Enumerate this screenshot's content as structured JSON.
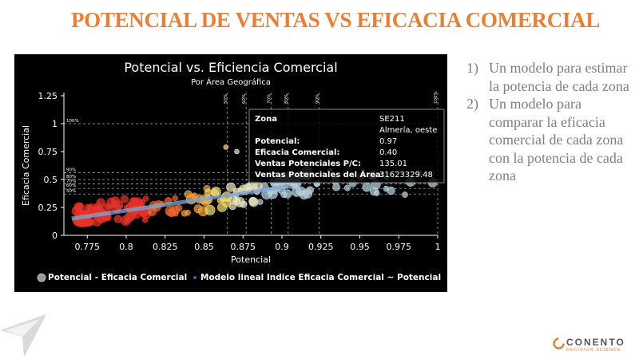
{
  "slide": {
    "title": "POTENCIAL DE VENTAS VS EFICACIA COMERCIAL",
    "bullets": [
      {
        "num": "1)",
        "text": "Un modelo para estimar la potencia de cada zona"
      },
      {
        "num": "2)",
        "text": "Un modelo para comparar la eficacia comercial de cada zona con la potencia de cada zona"
      }
    ],
    "logo_text": "CONENTO",
    "logo_subtext": "DECISION SCIENCE"
  },
  "colors": {
    "accent": "#ed7d31",
    "chart_bg": "#000000",
    "bullet_text": "#7f7f7f"
  },
  "chart_data": {
    "type": "scatter",
    "title": "Potencial vs. Eficiencia Comercial",
    "subtitle": "Por Área Geográfica",
    "xlabel": "Potencial",
    "ylabel": "Eficacia Comercial",
    "xlim": [
      0.76,
      1.0
    ],
    "ylim": [
      0,
      1.25
    ],
    "x_ticks": [
      "0.775",
      "0.8",
      "0.825",
      "0.85",
      "0.875",
      "0.9",
      "0.925",
      "0.95",
      "0.975",
      "1"
    ],
    "y_ticks": [
      "0",
      "0.25",
      "0.5",
      "0.75",
      "1",
      "1.25"
    ],
    "y_percent_lines": [
      {
        "label": "100%",
        "y": 1.0
      },
      {
        "label": "90%",
        "y": 0.56
      },
      {
        "label": "80%",
        "y": 0.5
      },
      {
        "label": "70%",
        "y": 0.46
      },
      {
        "label": "60%",
        "y": 0.42
      },
      {
        "label": "50%",
        "y": 0.37
      }
    ],
    "x_percent_lines": [
      {
        "label": "50%",
        "x": 0.865
      },
      {
        "label": "60%",
        "x": 0.877
      },
      {
        "label": "70%",
        "x": 0.893
      },
      {
        "label": "80%",
        "x": 0.904
      },
      {
        "label": "90%",
        "x": 0.924
      },
      {
        "label": "100%",
        "x": 1.0
      }
    ],
    "series": [
      {
        "name": "Potencial - Eficacia Comercial",
        "type": "scatter"
      },
      {
        "name": "Modelo lineal Indice Eficacia Comercial ~ Potencial",
        "type": "line",
        "x": [
          0.765,
          0.905
        ],
        "y": [
          0.15,
          0.44
        ]
      }
    ],
    "tooltip": {
      "rows": [
        [
          "Zona",
          "SE211"
        ],
        [
          "",
          "Almería, oeste"
        ],
        [
          "Potencial:",
          "0.97"
        ],
        [
          "Eficacia Comercial:",
          "0.40"
        ],
        [
          "Ventas Potenciales P/C:",
          "135.01"
        ],
        [
          "Ventas Potenciales del Área:",
          "31623329.48"
        ]
      ]
    }
  }
}
